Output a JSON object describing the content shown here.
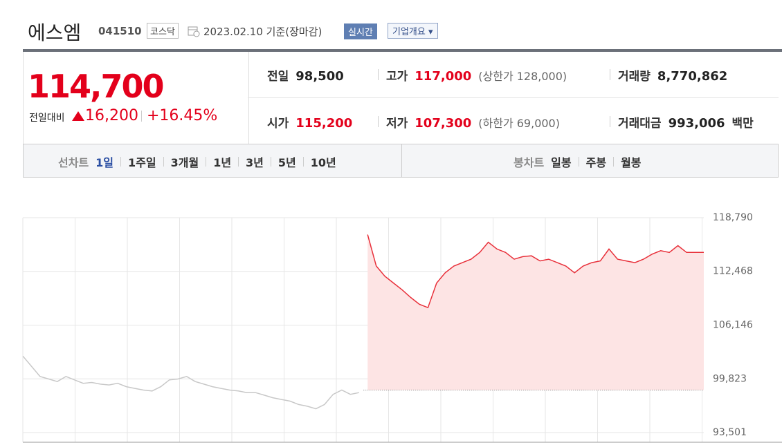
{
  "header": {
    "name": "에스엠",
    "code": "041510",
    "market": "코스닥",
    "date": "2023.02.10 기준(장마감)",
    "realtime": "실시간",
    "overview": "기업개요"
  },
  "price": {
    "current": "114,700",
    "change_label": "전일대비",
    "change": "16,200",
    "rate": "+16.45%"
  },
  "stats": [
    [
      {
        "label": "전일",
        "value": "98,500"
      },
      {
        "label": "고가",
        "value": "117,000",
        "note": "(상한가 128,000)"
      },
      {
        "label": "거래량",
        "value": "8,770,862"
      }
    ],
    [
      {
        "label": "시가",
        "value": "115,200"
      },
      {
        "label": "저가",
        "value": "107,300",
        "note": "(하한가 69,000)"
      },
      {
        "label": "거래대금",
        "value": "993,006",
        "unit": "백만"
      }
    ]
  ],
  "line_tabs": {
    "label": "선차트",
    "items": [
      "1일",
      "1주일",
      "3개월",
      "1년",
      "3년",
      "5년",
      "10년"
    ],
    "active": 0
  },
  "candle_tabs": {
    "label": "봉차트",
    "items": [
      "일봉",
      "주봉",
      "월봉"
    ]
  },
  "chart_data": {
    "type": "line",
    "series": [
      {
        "color": "#c8c8c8",
        "values": [
          102500,
          101300,
          100100,
          99800,
          99500,
          100100,
          99700,
          99300,
          99400,
          99200,
          99100,
          99300,
          98900,
          98700,
          98500,
          98400,
          98900,
          99700,
          99800,
          100100,
          99500,
          99200,
          98900,
          98700,
          98500,
          98400,
          98200,
          98200,
          97900,
          97600,
          97400,
          97200,
          96800,
          96600,
          96300,
          96800,
          98000,
          98500,
          98000,
          98200,
          null,
          null,
          null,
          null,
          null,
          null,
          null,
          null,
          null,
          null,
          null,
          null,
          null,
          null,
          null,
          null,
          null,
          null,
          null,
          null,
          null,
          null,
          null,
          null,
          null,
          null,
          null,
          null,
          null,
          null,
          null,
          null,
          null,
          null,
          null,
          null,
          null,
          null,
          null,
          null
        ]
      },
      {
        "color": "#e8303a",
        "fill": "#fde4e4",
        "values": [
          null,
          null,
          null,
          null,
          null,
          null,
          null,
          null,
          null,
          null,
          null,
          null,
          null,
          null,
          null,
          null,
          null,
          null,
          null,
          null,
          null,
          null,
          null,
          null,
          null,
          null,
          null,
          null,
          null,
          null,
          null,
          null,
          null,
          null,
          null,
          null,
          null,
          null,
          null,
          null,
          116800,
          113100,
          111900,
          111100,
          110300,
          109400,
          108600,
          108200,
          111100,
          112300,
          113100,
          113500,
          113900,
          114700,
          115900,
          115100,
          114700,
          113900,
          114200,
          114300,
          113700,
          113900,
          113500,
          113100,
          112300,
          113100,
          113500,
          113700,
          115100,
          113900,
          113700,
          113500,
          113900,
          114500,
          114900,
          114700,
          115500,
          114700,
          114700,
          114700
        ]
      }
    ],
    "baseline": 98500,
    "ylim": [
      93501,
      118790
    ],
    "yticks": [
      {
        "value": 118790,
        "label": "118,790"
      },
      {
        "value": 112468,
        "label": "112,468"
      },
      {
        "value": 106146,
        "label": "106,146"
      },
      {
        "value": 99823,
        "label": "99,823"
      },
      {
        "value": 93501,
        "label": "93,501"
      }
    ],
    "grid": true
  }
}
